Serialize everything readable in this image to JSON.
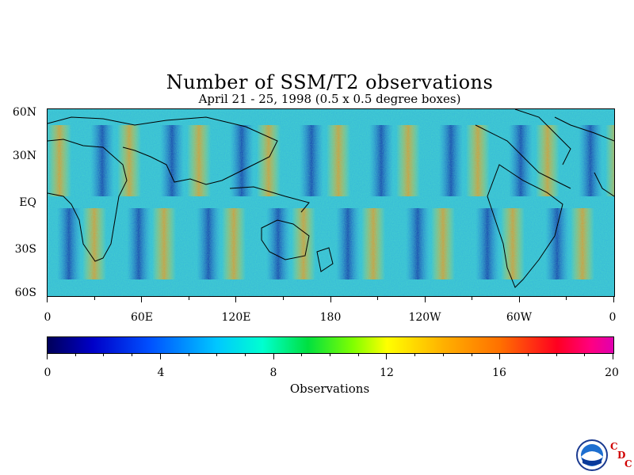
{
  "title": "Number of SSM/T2 observations",
  "subtitle": "April 21 - 25, 1998 (0.5 x 0.5 degree boxes)",
  "map": {
    "lat_labels": [
      "60N",
      "30N",
      "EQ",
      "30S",
      "60S"
    ],
    "lon_labels": [
      "0",
      "60E",
      "120E",
      "180",
      "120W",
      "60W",
      "0"
    ]
  },
  "colorbar": {
    "tick_labels": [
      "0",
      "4",
      "8",
      "12",
      "16",
      "20"
    ],
    "title": "Observations",
    "range": [
      0,
      20
    ],
    "colors": [
      "#00005a",
      "#0000c8",
      "#0050ff",
      "#00c8ff",
      "#00ffd0",
      "#00e040",
      "#80ff00",
      "#ffff00",
      "#ffb000",
      "#ff7000",
      "#ff0020",
      "#ff0080",
      "#e000b0"
    ]
  },
  "logo": {
    "icon": "noaa-logo-icon",
    "letters": [
      "C",
      "D",
      "C"
    ]
  }
}
